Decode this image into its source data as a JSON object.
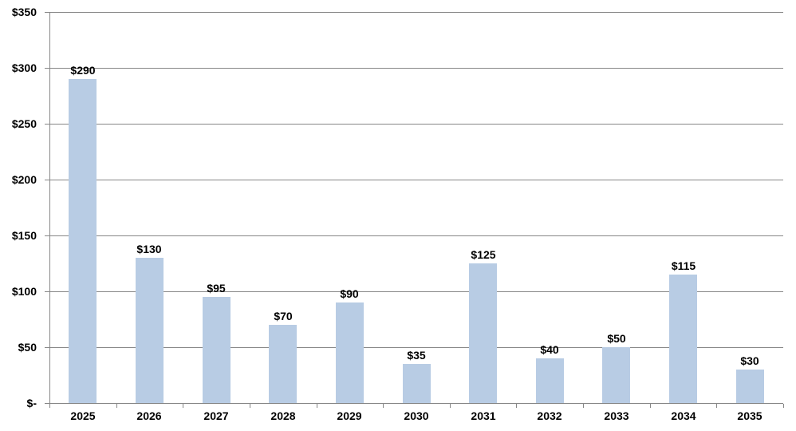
{
  "chart_data": {
    "type": "bar",
    "title": "",
    "xlabel": "",
    "ylabel": "",
    "categories": [
      "2025",
      "2026",
      "2027",
      "2028",
      "2029",
      "2030",
      "2031",
      "2032",
      "2033",
      "2034",
      "2035"
    ],
    "values": [
      290,
      130,
      95,
      70,
      90,
      35,
      125,
      40,
      50,
      115,
      30
    ],
    "value_labels": [
      "$290",
      "$130",
      "$95",
      "$70",
      "$90",
      "$35",
      "$125",
      "$40",
      "$50",
      "$115",
      "$30"
    ],
    "y_tick_labels": [
      "$-",
      "$50",
      "$100",
      "$150",
      "$200",
      "$250",
      "$300",
      "$350"
    ],
    "ylim": [
      0,
      350
    ],
    "y_step": 50,
    "grid": true,
    "legend": false,
    "bar_color": "#B8CCE4",
    "gridline_color": "#878787",
    "axis_color": "#878787",
    "text_color": "#000000"
  }
}
